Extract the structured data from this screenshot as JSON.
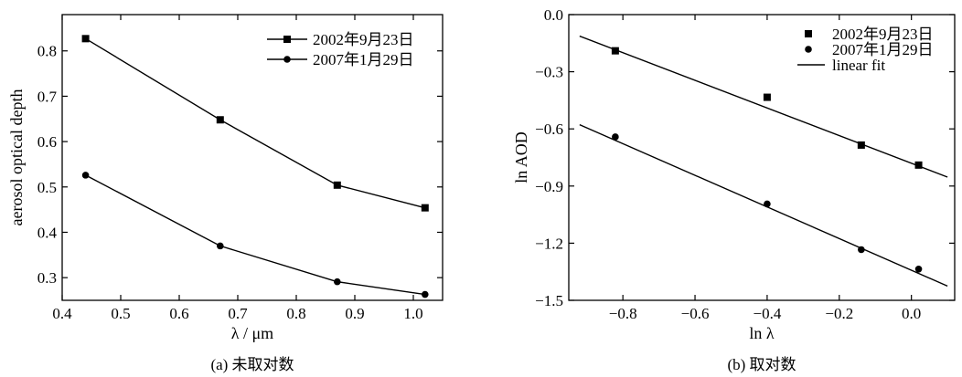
{
  "chart_data": [
    {
      "type": "line",
      "caption": "(a) 未取对数",
      "xlabel": "λ / μm",
      "ylabel": "aerosol optical depth",
      "xlim": [
        0.4,
        1.05
      ],
      "ylim": [
        0.25,
        0.88
      ],
      "xticks": [
        0.4,
        0.5,
        0.6,
        0.7,
        0.8,
        0.9,
        1.0
      ],
      "yticks": [
        0.3,
        0.4,
        0.5,
        0.6,
        0.7,
        0.8
      ],
      "grid": false,
      "legend_position": "top-right",
      "series": [
        {
          "name": "2002年9月23日",
          "marker": "square",
          "x": [
            0.44,
            0.67,
            0.87,
            1.02
          ],
          "values": [
            0.827,
            0.648,
            0.504,
            0.454
          ]
        },
        {
          "name": "2007年1月29日",
          "marker": "circle",
          "x": [
            0.44,
            0.67,
            0.87,
            1.02
          ],
          "values": [
            0.526,
            0.37,
            0.291,
            0.263
          ]
        }
      ]
    },
    {
      "type": "scatter",
      "caption": "(b) 取对数",
      "xlabel": "ln λ",
      "ylabel": "ln AOD",
      "xlim": [
        -0.95,
        0.12
      ],
      "ylim": [
        -1.5,
        0.0
      ],
      "xticks": [
        -0.8,
        -0.6,
        -0.4,
        -0.2,
        0.0
      ],
      "yticks": [
        0.0,
        -0.3,
        -0.6,
        -0.9,
        -1.2,
        -1.5
      ],
      "grid": false,
      "legend_position": "top-right",
      "series": [
        {
          "name": "2002年9月23日",
          "marker": "square",
          "x": [
            -0.821,
            -0.4,
            -0.139,
            0.02
          ],
          "values": [
            -0.19,
            -0.434,
            -0.685,
            -0.79
          ]
        },
        {
          "name": "2007年1月29日",
          "marker": "circle",
          "x": [
            -0.821,
            -0.4,
            -0.139,
            0.02
          ],
          "values": [
            -0.642,
            -0.994,
            -1.234,
            -1.336
          ]
        }
      ],
      "fit_label": "linear fit",
      "fits": [
        {
          "x": [
            -0.92,
            0.1
          ],
          "values": [
            -0.113,
            -0.853
          ]
        },
        {
          "x": [
            -0.92,
            0.1
          ],
          "values": [
            -0.578,
            -1.425
          ]
        }
      ]
    }
  ]
}
